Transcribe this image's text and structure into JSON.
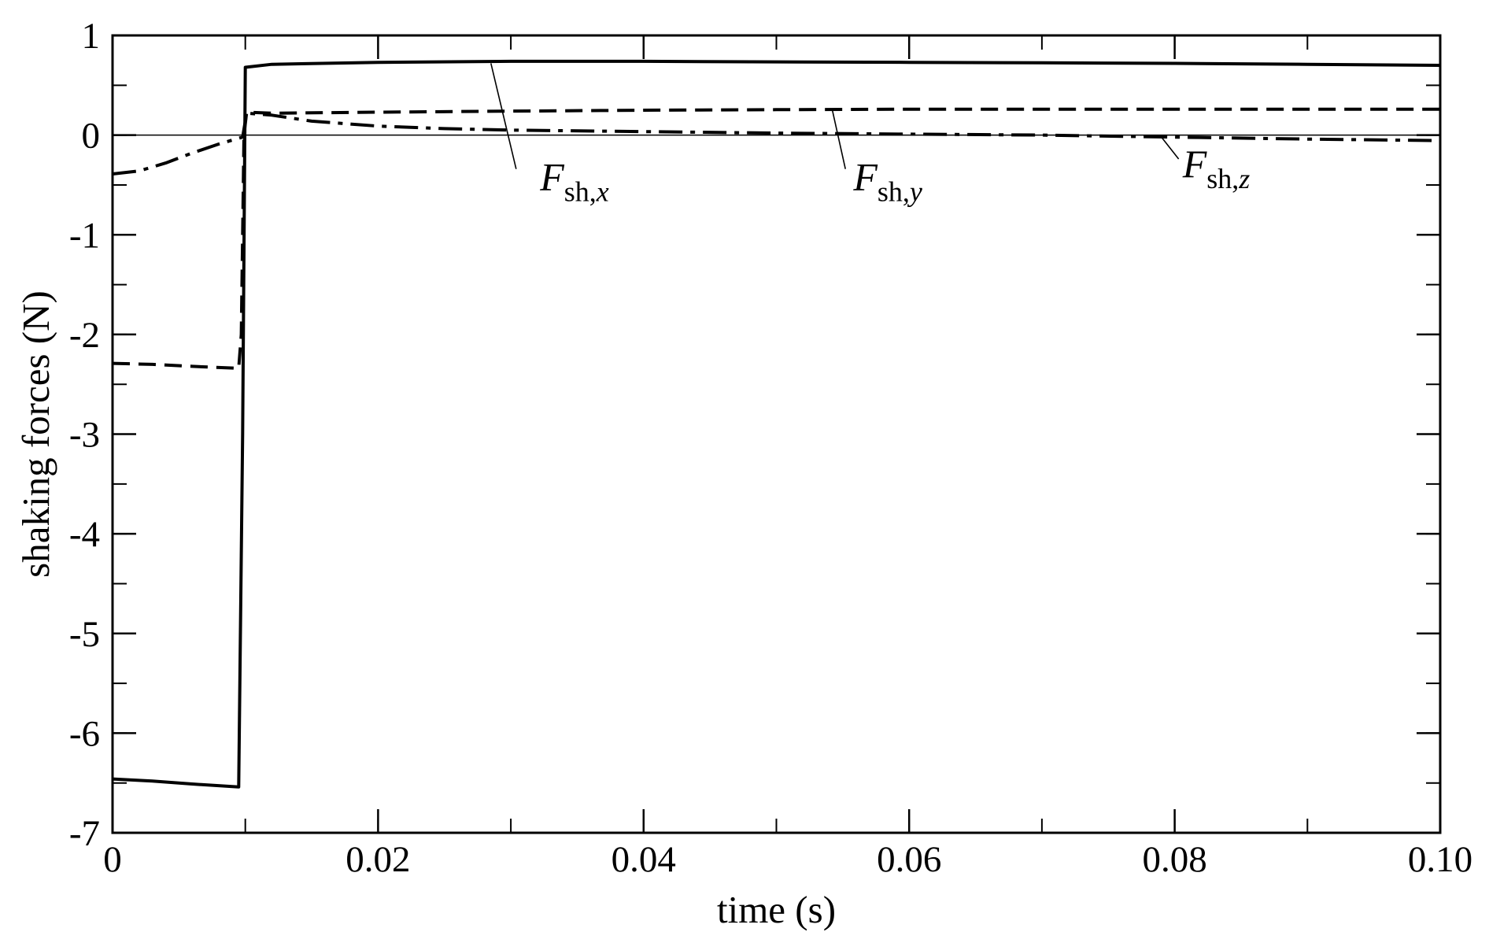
{
  "chart_data": {
    "type": "line",
    "title": "",
    "xlabel": "time (s)",
    "ylabel": "shaking forces (N)",
    "xlim": [
      0,
      0.1
    ],
    "ylim": [
      -7,
      1
    ],
    "x_ticks": [
      {
        "value": 0,
        "label": "0"
      },
      {
        "value": 0.02,
        "label": "0.02"
      },
      {
        "value": 0.04,
        "label": "0.04"
      },
      {
        "value": 0.06,
        "label": "0.06"
      },
      {
        "value": 0.08,
        "label": "0.08"
      },
      {
        "value": 0.1,
        "label": "0.10"
      }
    ],
    "x_minor_step": 0.01,
    "y_ticks": [
      {
        "value": 1,
        "label": "1"
      },
      {
        "value": 0,
        "label": "0"
      },
      {
        "value": -1,
        "label": "-1"
      },
      {
        "value": -2,
        "label": "-2"
      },
      {
        "value": -3,
        "label": "-3"
      },
      {
        "value": -4,
        "label": "-4"
      },
      {
        "value": -5,
        "label": "-5"
      },
      {
        "value": -6,
        "label": "-6"
      },
      {
        "value": -7,
        "label": "-7"
      }
    ],
    "y_minor_step": 0.5,
    "zero_line": true,
    "grid": false,
    "legend": "none",
    "series": [
      {
        "line_style": "solid",
        "color": "#000000",
        "points": [
          [
            0,
            -6.46
          ],
          [
            0.003,
            -6.48
          ],
          [
            0.006,
            -6.51
          ],
          [
            0.0095,
            -6.54
          ],
          [
            0.0098,
            -3.0
          ],
          [
            0.01,
            0.68
          ],
          [
            0.012,
            0.71
          ],
          [
            0.02,
            0.73
          ],
          [
            0.03,
            0.74
          ],
          [
            0.04,
            0.74
          ],
          [
            0.05,
            0.735
          ],
          [
            0.06,
            0.73
          ],
          [
            0.07,
            0.725
          ],
          [
            0.08,
            0.72
          ],
          [
            0.09,
            0.71
          ],
          [
            0.1,
            0.7
          ]
        ]
      },
      {
        "line_style": "dashed",
        "color": "#000000",
        "points": [
          [
            0,
            -2.29
          ],
          [
            0.003,
            -2.3
          ],
          [
            0.006,
            -2.32
          ],
          [
            0.0095,
            -2.34
          ],
          [
            0.0097,
            -2.0
          ],
          [
            0.0099,
            0.0
          ],
          [
            0.0101,
            0.23
          ],
          [
            0.012,
            0.22
          ],
          [
            0.02,
            0.23
          ],
          [
            0.03,
            0.24
          ],
          [
            0.04,
            0.25
          ],
          [
            0.05,
            0.255
          ],
          [
            0.06,
            0.26
          ],
          [
            0.07,
            0.26
          ],
          [
            0.08,
            0.26
          ],
          [
            0.09,
            0.26
          ],
          [
            0.1,
            0.26
          ]
        ]
      },
      {
        "line_style": "dash-dot",
        "color": "#000000",
        "points": [
          [
            0,
            -0.39
          ],
          [
            0.002,
            -0.36
          ],
          [
            0.004,
            -0.28
          ],
          [
            0.006,
            -0.18
          ],
          [
            0.008,
            -0.09
          ],
          [
            0.0098,
            -0.02
          ],
          [
            0.0101,
            0.22
          ],
          [
            0.012,
            0.2
          ],
          [
            0.015,
            0.14
          ],
          [
            0.02,
            0.09
          ],
          [
            0.025,
            0.065
          ],
          [
            0.03,
            0.05
          ],
          [
            0.04,
            0.035
          ],
          [
            0.05,
            0.02
          ],
          [
            0.06,
            0.01
          ],
          [
            0.07,
            0.0
          ],
          [
            0.08,
            -0.02
          ],
          [
            0.09,
            -0.04
          ],
          [
            0.1,
            -0.055
          ]
        ]
      }
    ],
    "annotations": [
      {
        "main": "F",
        "sub": "sh,",
        "sub_italic": "x",
        "label_x": 0.0322,
        "label_y": -0.55,
        "leader_from": [
          0.0304,
          -0.34
        ],
        "leader_to": [
          0.0285,
          0.72
        ]
      },
      {
        "main": "F",
        "sub": "sh,",
        "sub_italic": "y",
        "label_x": 0.0558,
        "label_y": -0.55,
        "leader_from": [
          0.0552,
          -0.34
        ],
        "leader_to": [
          0.0542,
          0.26
        ]
      },
      {
        "main": "F",
        "sub": "sh,",
        "sub_italic": "z",
        "label_x": 0.0806,
        "label_y": -0.42,
        "leader_from": [
          0.0803,
          -0.24
        ],
        "leader_to": [
          0.079,
          -0.02
        ]
      }
    ]
  }
}
